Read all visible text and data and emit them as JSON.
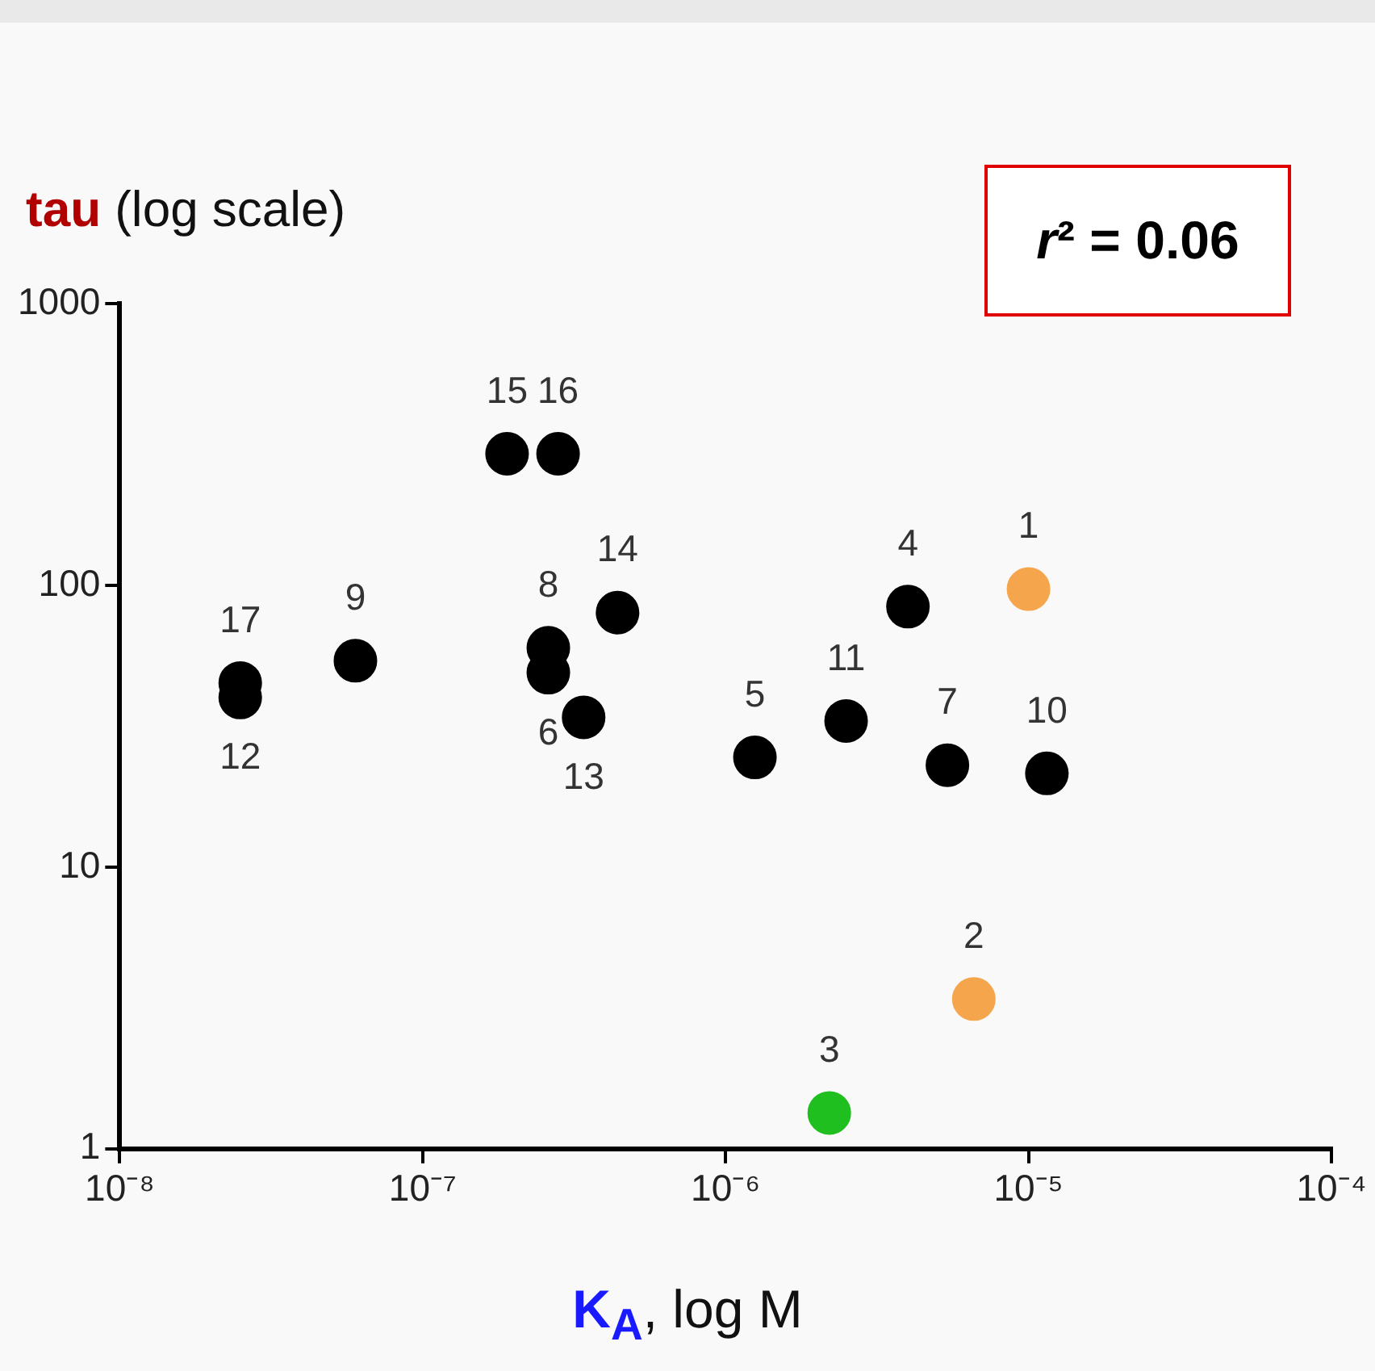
{
  "chart_data": {
    "type": "scatter",
    "ylabel": "tau (log scale)",
    "xlabel": "K$_{A}$, log M",
    "log": "xy",
    "grid": false,
    "legend": false,
    "marker": "circle",
    "xlim": [
      1e-08,
      0.0001
    ],
    "xticks": [
      {
        "value": 1e-08,
        "label": "10⁻⁸"
      },
      {
        "value": 1e-07,
        "label": "10⁻⁷"
      },
      {
        "value": 1e-06,
        "label": "10⁻⁶"
      },
      {
        "value": 1e-05,
        "label": "10⁻⁵"
      },
      {
        "value": 0.0001,
        "label": "10⁻⁴"
      }
    ],
    "ylim": [
      1,
      1000
    ],
    "yticks": [
      1,
      10,
      100,
      1000
    ],
    "x": [
      1e-05,
      6.6e-06,
      2.2e-06,
      4e-06,
      1.25e-06,
      2.6e-07,
      5.4e-06,
      2.6e-07,
      6e-08,
      1.15e-05,
      2.5e-06,
      2.5e-08,
      3.4e-07,
      4.4e-07,
      1.9e-07,
      2.8e-07,
      2.5e-08
    ],
    "series": [
      {
        "values": [
          97,
          3.4,
          1.34,
          84,
          24.5,
          49,
          23,
          60,
          54,
          21.5,
          33,
          40,
          34,
          80,
          293,
          293,
          45
        ],
        "colors": [
          "#f5a54b",
          "#f5a54b",
          "#1fbf1f",
          "#000000",
          "#000000",
          "#000000",
          "#000000",
          "#000000",
          "#000000",
          "#000000",
          "#000000",
          "#000000",
          "#000000",
          "#000000",
          "#000000",
          "#000000",
          "#000000"
        ]
      }
    ],
    "annotations": [
      {
        "text": "1",
        "x": 1e-05,
        "y": 97
      },
      {
        "text": "2",
        "x": 6.6e-06,
        "y": 3.4
      },
      {
        "text": "3",
        "x": 2.2e-06,
        "y": 1.34
      },
      {
        "text": "4",
        "x": 4e-06,
        "y": 84
      },
      {
        "text": "5",
        "x": 1.25e-06,
        "y": 24.5
      },
      {
        "text": "6",
        "x": 2.6e-07,
        "y": 49
      },
      {
        "text": "7",
        "x": 5.4e-06,
        "y": 23
      },
      {
        "text": "8",
        "x": 2.6e-07,
        "y": 60
      },
      {
        "text": "9",
        "x": 6e-08,
        "y": 54
      },
      {
        "text": "10",
        "x": 1.15e-05,
        "y": 21.5
      },
      {
        "text": "11",
        "x": 2.5e-06,
        "y": 33
      },
      {
        "text": "12",
        "x": 2.5e-08,
        "y": 40
      },
      {
        "text": "13",
        "x": 3.4e-07,
        "y": 34
      },
      {
        "text": "14",
        "x": 4.4e-07,
        "y": 80
      },
      {
        "text": "15",
        "x": 1.9e-07,
        "y": 293
      },
      {
        "text": "16",
        "x": 2.8e-07,
        "y": 293
      },
      {
        "text": "17",
        "x": 2.5e-08,
        "y": 45
      },
      "r² = 0.06"
    ]
  }
}
